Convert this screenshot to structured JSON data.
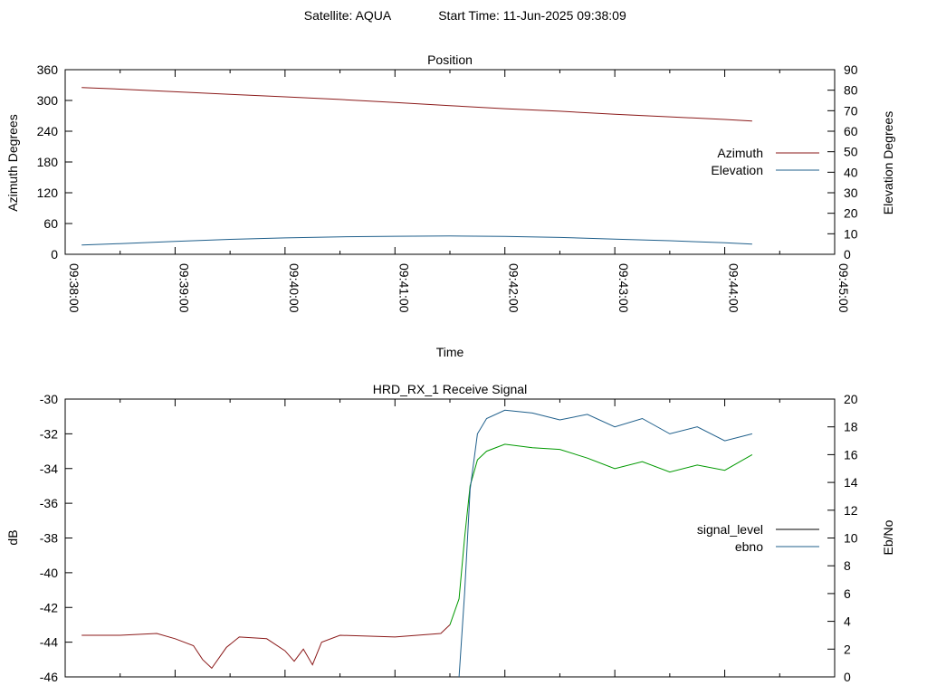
{
  "header": {
    "satellite": "Satellite: AQUA",
    "start_time": "Start Time: 11-Jun-2025 09:38:09"
  },
  "chart_data": [
    {
      "type": "line",
      "title": "Position",
      "xlabel": "Time",
      "ylabel": "Azimuth Degrees",
      "y2label": "Elevation Degrees",
      "xlim": [
        "09:38:00",
        "09:45:00"
      ],
      "ylim": [
        0,
        360
      ],
      "y2lim": [
        0,
        90
      ],
      "x_ticks": [
        "09:38:00",
        "09:39:00",
        "09:40:00",
        "09:41:00",
        "09:42:00",
        "09:43:00",
        "09:44:00",
        "09:45:00"
      ],
      "y_ticks": [
        "0",
        "60",
        "120",
        "180",
        "240",
        "300",
        "360"
      ],
      "y2_ticks": [
        "0",
        "10",
        "20",
        "30",
        "40",
        "50",
        "60",
        "70",
        "80",
        "90"
      ],
      "legend_position": "right",
      "grid": false,
      "x": [
        "09:38:09",
        "09:38:30",
        "09:39:00",
        "09:39:30",
        "09:40:00",
        "09:40:30",
        "09:41:00",
        "09:41:30",
        "09:42:00",
        "09:42:30",
        "09:43:00",
        "09:43:30",
        "09:44:00",
        "09:44:15"
      ],
      "series": [
        {
          "name": "Azimuth",
          "axis": "left",
          "color": "#8b1a1a",
          "values": [
            325,
            322,
            317,
            312,
            307,
            302,
            296,
            290,
            284,
            279,
            273,
            268,
            263,
            260
          ]
        },
        {
          "name": "Elevation",
          "axis": "right",
          "color": "#1f5f8b",
          "values": [
            4.5,
            5.2,
            6.3,
            7.3,
            8.0,
            8.5,
            8.8,
            8.9,
            8.7,
            8.2,
            7.4,
            6.6,
            5.6,
            5.0
          ]
        }
      ]
    },
    {
      "type": "line",
      "title": "HRD_RX_1 Receive Signal",
      "ylabel": "dB",
      "y2label": "Eb/No",
      "xlim": [
        "09:38:00",
        "09:45:00"
      ],
      "ylim": [
        -46,
        -30
      ],
      "y2lim": [
        0,
        20
      ],
      "y_ticks": [
        "-46",
        "-44",
        "-42",
        "-40",
        "-38",
        "-36",
        "-34",
        "-32",
        "-30"
      ],
      "y2_ticks": [
        "0",
        "2",
        "4",
        "6",
        "8",
        "10",
        "12",
        "14",
        "16",
        "18",
        "20"
      ],
      "legend_position": "right",
      "grid": false,
      "color_low": "#8b1a1a",
      "color_high": "#009900",
      "series": [
        {
          "name": "signal_level",
          "axis": "left",
          "legend_color": "#000000",
          "x": [
            "09:38:09",
            "09:38:30",
            "09:38:50",
            "09:39:00",
            "09:39:10",
            "09:39:15",
            "09:39:20",
            "09:39:28",
            "09:39:35",
            "09:39:50",
            "09:40:00",
            "09:40:05",
            "09:40:10",
            "09:40:15",
            "09:40:20",
            "09:40:30",
            "09:41:00",
            "09:41:25",
            "09:41:30",
            "09:41:35",
            "09:41:38",
            "09:41:41",
            "09:41:45",
            "09:41:50",
            "09:42:00",
            "09:42:15",
            "09:42:30",
            "09:42:45",
            "09:43:00",
            "09:43:15",
            "09:43:30",
            "09:43:45",
            "09:44:00",
            "09:44:15"
          ],
          "values": [
            -43.6,
            -43.6,
            -43.5,
            -43.8,
            -44.2,
            -45.0,
            -45.5,
            -44.3,
            -43.7,
            -43.8,
            -44.5,
            -45.1,
            -44.4,
            -45.3,
            -44.0,
            -43.6,
            -43.7,
            -43.5,
            -43.0,
            -41.5,
            -38.0,
            -35.0,
            -33.5,
            -33.0,
            -32.6,
            -32.8,
            -32.9,
            -33.4,
            -34.0,
            -33.6,
            -34.2,
            -33.8,
            -34.1,
            -33.2
          ]
        },
        {
          "name": "ebno",
          "axis": "right",
          "color": "#1f5f8b",
          "x": [
            "09:41:35",
            "09:41:38",
            "09:41:41",
            "09:41:45",
            "09:41:50",
            "09:42:00",
            "09:42:15",
            "09:42:30",
            "09:42:45",
            "09:43:00",
            "09:43:15",
            "09:43:30",
            "09:43:45",
            "09:44:00",
            "09:44:15"
          ],
          "values": [
            0.0,
            6.0,
            13.5,
            17.5,
            18.6,
            19.2,
            19.0,
            18.5,
            18.9,
            18.0,
            18.6,
            17.5,
            18.0,
            17.0,
            17.5
          ]
        }
      ]
    }
  ]
}
